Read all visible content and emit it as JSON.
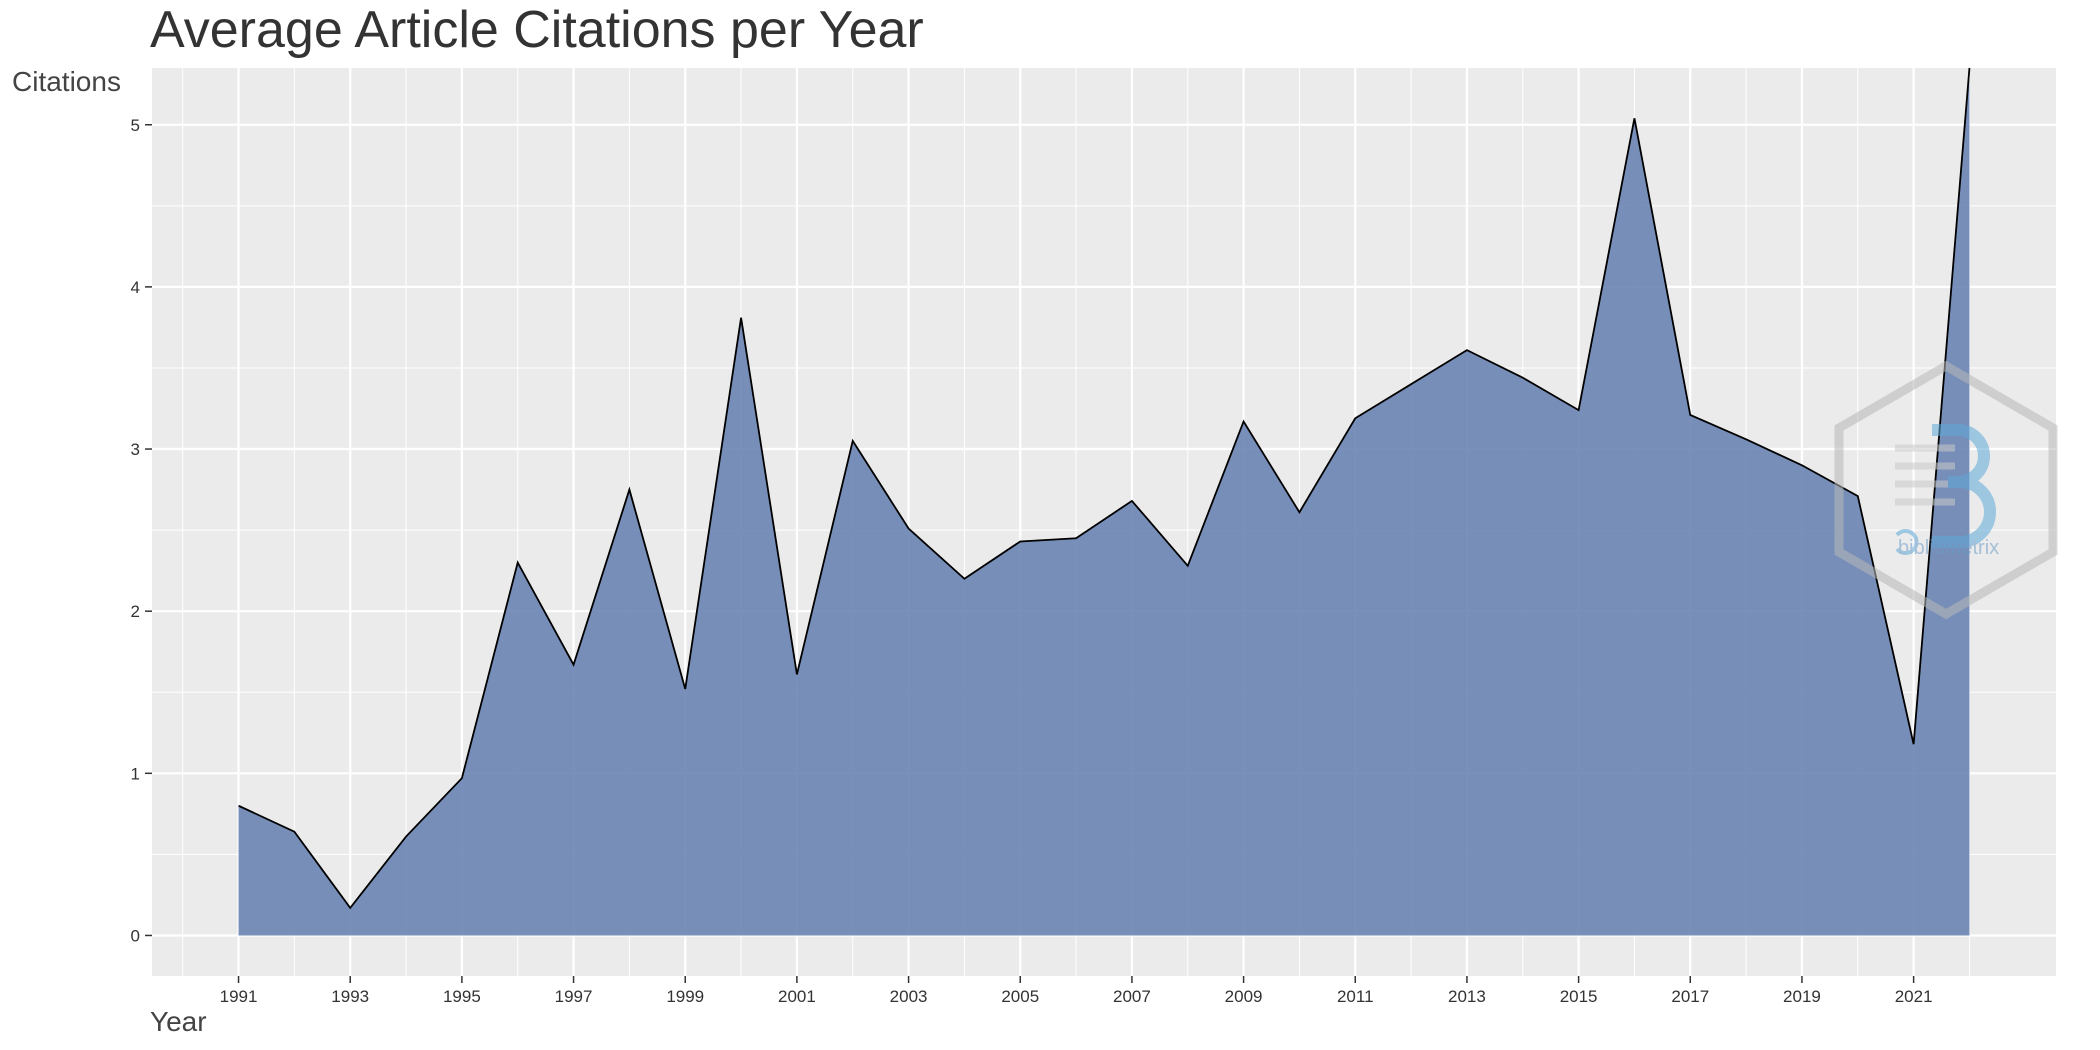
{
  "chart_data": {
    "type": "area",
    "title": "Average Article Citations per Year",
    "xlabel": "Year",
    "ylabel": "Citations",
    "x": [
      1991,
      1992,
      1993,
      1994,
      1995,
      1996,
      1997,
      1998,
      1999,
      2000,
      2001,
      2002,
      2003,
      2004,
      2005,
      2006,
      2007,
      2008,
      2009,
      2010,
      2011,
      2012,
      2013,
      2014,
      2015,
      2016,
      2017,
      2018,
      2019,
      2020,
      2021,
      2022
    ],
    "y": [
      0.8,
      0.64,
      0.17,
      0.61,
      0.97,
      2.3,
      1.67,
      2.75,
      1.52,
      3.81,
      1.61,
      3.05,
      2.51,
      2.2,
      2.43,
      2.45,
      2.68,
      2.28,
      3.17,
      2.61,
      3.19,
      3.4,
      3.61,
      3.44,
      3.24,
      5.04,
      3.21,
      3.06,
      2.9,
      2.71,
      1.18,
      5.35
    ],
    "x_ticks": [
      1991,
      1993,
      1995,
      1997,
      1999,
      2001,
      2003,
      2005,
      2007,
      2009,
      2011,
      2013,
      2015,
      2017,
      2019,
      2021
    ],
    "y_ticks": [
      0,
      1,
      2,
      3,
      4,
      5
    ],
    "xlim": [
      1989.45,
      2023.55
    ],
    "ylim": [
      -0.25,
      5.35
    ],
    "grid": true,
    "fill_color": "#6a84b3",
    "line_color": "#000000",
    "panel_color": "#ebebeb",
    "grid_color": "#ffffff"
  },
  "watermark": {
    "text": "bibliometrix",
    "icon": "bibliometrix-logo-icon"
  }
}
